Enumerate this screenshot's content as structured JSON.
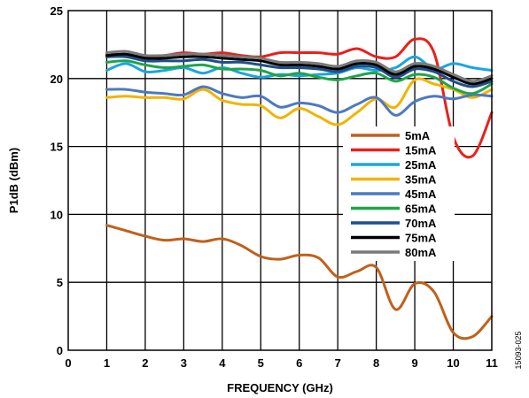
{
  "figure_id": "15093-025",
  "chart_data": {
    "type": "line",
    "title": "",
    "xlabel": "FREQUENCY (GHz)",
    "ylabel": "P1dB (dBm)",
    "xlim": [
      0,
      11
    ],
    "ylim": [
      0,
      25
    ],
    "xticks": [
      0,
      1,
      2,
      3,
      4,
      5,
      6,
      7,
      8,
      9,
      10,
      11
    ],
    "yticks": [
      0,
      5,
      10,
      15,
      20,
      25
    ],
    "grid": true,
    "legend_position": "right-center",
    "x": [
      1,
      1.5,
      2,
      2.5,
      3,
      3.5,
      4,
      4.5,
      5,
      5.5,
      6,
      6.5,
      7,
      7.5,
      8,
      8.5,
      9,
      9.5,
      10,
      10.5,
      11
    ],
    "series": [
      {
        "name": "5mA",
        "color": "#c0601a",
        "values": [
          9.2,
          8.8,
          8.4,
          8.1,
          8.2,
          8.0,
          8.2,
          7.7,
          6.9,
          6.7,
          7.0,
          6.8,
          5.4,
          5.8,
          6.1,
          3.0,
          4.9,
          4.3,
          1.3,
          1.0,
          2.5
        ]
      },
      {
        "name": "15mA",
        "color": "#e8201c",
        "values": [
          21.8,
          21.7,
          21.6,
          21.7,
          21.9,
          21.8,
          21.9,
          21.7,
          21.6,
          21.9,
          21.9,
          21.9,
          21.8,
          22.2,
          21.6,
          21.6,
          22.9,
          21.9,
          15.7,
          14.3,
          17.5
        ]
      },
      {
        "name": "25mA",
        "color": "#19a6e0",
        "values": [
          20.6,
          21.1,
          20.5,
          20.6,
          20.8,
          20.4,
          20.8,
          20.4,
          20.1,
          20.3,
          20.2,
          20.3,
          20.4,
          20.8,
          20.6,
          20.8,
          21.6,
          20.7,
          21.1,
          20.8,
          20.6
        ]
      },
      {
        "name": "35mA",
        "color": "#f2b300",
        "values": [
          18.6,
          18.7,
          18.6,
          18.6,
          18.5,
          19.2,
          18.4,
          18.1,
          18.0,
          17.1,
          17.8,
          17.2,
          16.6,
          17.5,
          18.5,
          17.9,
          19.9,
          19.6,
          19.2,
          18.6,
          19.2
        ]
      },
      {
        "name": "45mA",
        "color": "#4c79c2",
        "values": [
          19.2,
          19.2,
          19.0,
          18.9,
          18.8,
          19.4,
          18.9,
          18.6,
          18.7,
          17.9,
          18.2,
          18.0,
          17.5,
          18.1,
          18.6,
          17.3,
          18.3,
          18.7,
          18.5,
          18.8,
          18.7
        ]
      },
      {
        "name": "65mA",
        "color": "#1ea54a",
        "values": [
          21.2,
          21.3,
          21.0,
          20.8,
          20.9,
          21.0,
          20.7,
          20.7,
          20.6,
          20.2,
          20.4,
          20.1,
          19.9,
          20.2,
          20.4,
          19.8,
          20.3,
          20.1,
          19.3,
          18.9,
          19.6
        ]
      },
      {
        "name": "70mA",
        "color": "#1e4f8c",
        "values": [
          21.6,
          21.6,
          21.3,
          21.3,
          21.3,
          21.4,
          21.2,
          21.2,
          21.0,
          20.8,
          20.8,
          20.7,
          20.5,
          20.9,
          20.8,
          20.1,
          20.7,
          20.5,
          19.8,
          19.4,
          19.8
        ]
      },
      {
        "name": "75mA",
        "color": "#000000",
        "values": [
          21.7,
          21.8,
          21.5,
          21.5,
          21.6,
          21.6,
          21.5,
          21.4,
          21.3,
          21.0,
          21.0,
          20.9,
          20.7,
          21.1,
          21.0,
          20.3,
          20.9,
          20.7,
          20.1,
          19.6,
          20.0
        ]
      },
      {
        "name": "80mA",
        "color": "#7a7a7a",
        "values": [
          21.9,
          22.0,
          21.7,
          21.7,
          21.8,
          21.8,
          21.7,
          21.6,
          21.5,
          21.2,
          21.2,
          21.1,
          20.9,
          21.3,
          21.2,
          20.5,
          21.1,
          20.9,
          20.3,
          19.8,
          20.2
        ]
      }
    ]
  }
}
